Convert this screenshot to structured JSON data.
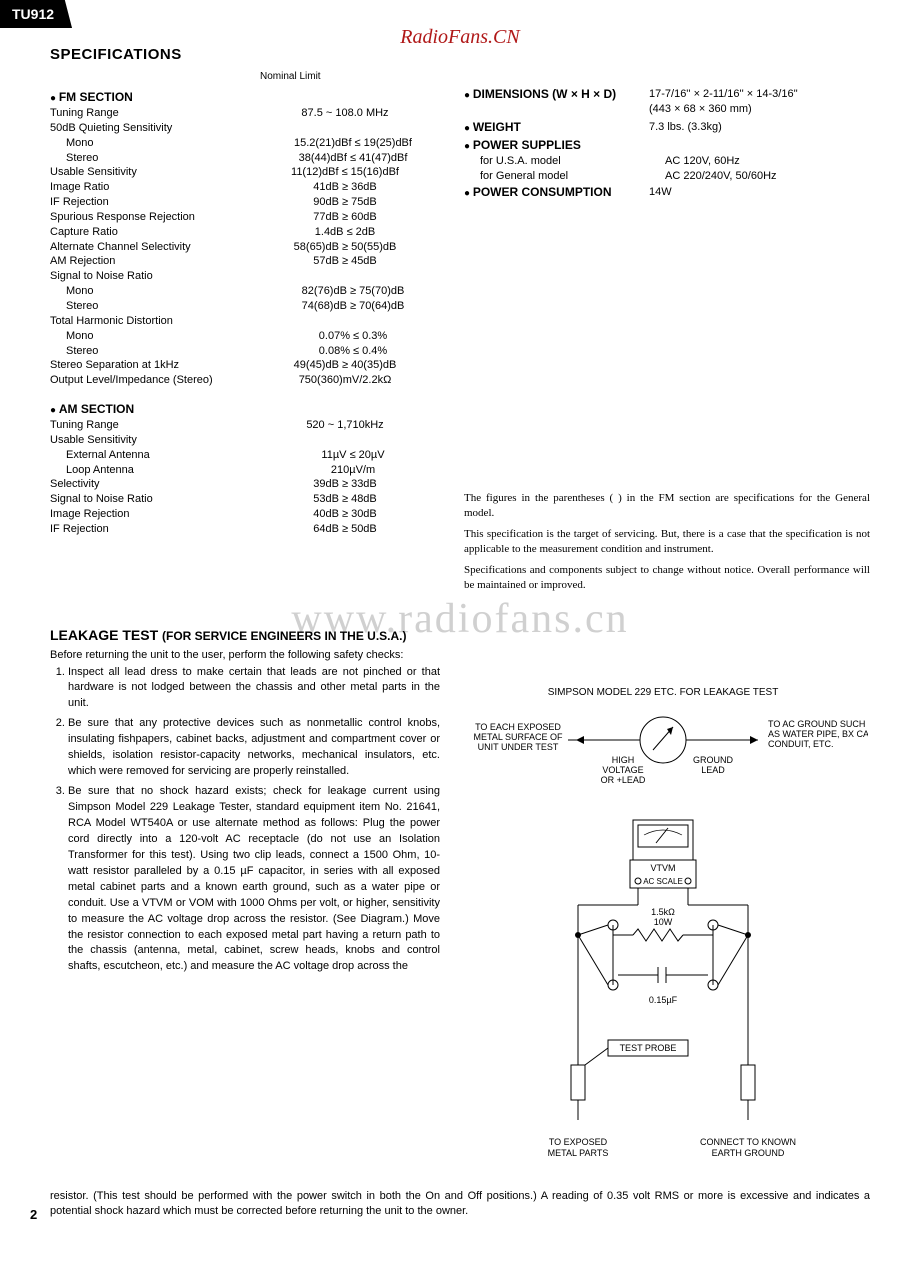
{
  "badge": "TU912",
  "brand": "RadioFans.CN",
  "watermark": "www.radiofans.cn",
  "page_num": "2",
  "title": "SPECIFICATIONS",
  "nl_header": "Nominal    Limit",
  "fm": {
    "head": "FM SECTION",
    "rows": [
      {
        "l": "Tuning Range",
        "v": "87.5 ~ 108.0 MHz"
      },
      {
        "l": "50dB Quieting Sensitivity",
        "v": ""
      },
      {
        "l": "Mono",
        "v": "15.2(21)dBf ≤ 19(25)dBf",
        "indent": true
      },
      {
        "l": "Stereo",
        "v": "38(44)dBf ≤ 41(47)dBf",
        "indent": true
      },
      {
        "l": "Usable Sensitivity",
        "v": "11(12)dBf ≤ 15(16)dBf"
      },
      {
        "l": "Image Ratio",
        "v": "41dB ≥ 36dB"
      },
      {
        "l": "IF Rejection",
        "v": "90dB ≥ 75dB"
      },
      {
        "l": "Spurious Response Rejection",
        "v": "77dB ≥ 60dB"
      },
      {
        "l": "Capture Ratio",
        "v": "1.4dB ≤ 2dB"
      },
      {
        "l": "Alternate Channel Selectivity",
        "v": "58(65)dB ≥ 50(55)dB"
      },
      {
        "l": "AM Rejection",
        "v": "57dB ≥ 45dB"
      },
      {
        "l": "Signal to Noise Ratio",
        "v": ""
      },
      {
        "l": "Mono",
        "v": "82(76)dB ≥ 75(70)dB",
        "indent": true
      },
      {
        "l": "Stereo",
        "v": "74(68)dB ≥ 70(64)dB",
        "indent": true
      },
      {
        "l": "Total Harmonic Distortion",
        "v": ""
      },
      {
        "l": "Mono",
        "v": "0.07% ≤ 0.3%",
        "indent": true
      },
      {
        "l": "Stereo",
        "v": "0.08% ≤ 0.4%",
        "indent": true
      },
      {
        "l": "Stereo Separation at 1kHz",
        "v": "49(45)dB ≥ 40(35)dB"
      },
      {
        "l": "Output Level/Impedance (Stereo)",
        "v": "750(360)mV/2.2kΩ"
      }
    ]
  },
  "am": {
    "head": "AM SECTION",
    "rows": [
      {
        "l": "Tuning Range",
        "v": "520 ~ 1,710kHz"
      },
      {
        "l": "Usable Sensitivity",
        "v": ""
      },
      {
        "l": "External Antenna",
        "v": "11µV ≤ 20µV",
        "indent": true
      },
      {
        "l": "Loop Antenna",
        "v": "210µV/m",
        "indent": true
      },
      {
        "l": "Selectivity",
        "v": "39dB ≥ 33dB"
      },
      {
        "l": "Signal to Noise Ratio",
        "v": "53dB ≥ 48dB"
      },
      {
        "l": "Image Rejection",
        "v": "40dB ≥ 30dB"
      },
      {
        "l": "IF Rejection",
        "v": "64dB ≥ 50dB"
      }
    ]
  },
  "right": [
    {
      "h": "DIMENSIONS (W × H × D)",
      "rows": [
        {
          "l": "",
          "v": "17-7/16'' × 2-11/16'' × 14-3/16''"
        },
        {
          "l": "",
          "v": "(443 × 68 × 360 mm)"
        }
      ]
    },
    {
      "h": "WEIGHT",
      "rows": [
        {
          "l": "",
          "v": "7.3 lbs. (3.3kg)"
        }
      ]
    },
    {
      "h": "POWER SUPPLIES",
      "rows": [
        {
          "l": "for U.S.A. model",
          "v": "AC 120V, 60Hz",
          "indent": true
        },
        {
          "l": "for General model",
          "v": "AC 220/240V, 50/60Hz",
          "indent": true
        }
      ]
    },
    {
      "h": "POWER CONSUMPTION",
      "rows": [
        {
          "l": "",
          "v": "14W"
        }
      ]
    }
  ],
  "notes": [
    "The figures in the parentheses ( ) in the FM section are specifications for the General model.",
    "This specification is the target of servicing. But, there is a case that the specification is not applicable to the measurement condition and instrument.",
    "Specifications and components subject to change without notice. Overall performance will be maintained or improved."
  ],
  "leakage": {
    "title": "LEAKAGE TEST",
    "sub": "(FOR SERVICE ENGINEERS IN THE U.S.A.)",
    "intro": "Before returning the unit to the user, perform the following safety checks:",
    "items": [
      "Inspect all lead dress to make certain that leads are not pinched or that hardware is not lodged between the chassis and other metal parts in the unit.",
      "Be sure that any protective devices such as nonmetallic control knobs, insulating fishpapers, cabinet backs, adjustment and compartment cover or shields, isolation resistor-capacity networks, mechanical insulators, etc. which were removed for servicing are properly reinstalled.",
      "Be sure that no shock hazard exists; check for leakage current using Simpson Model 229 Leakage Tester, standard equipment item No. 21641, RCA Model WT540A or use alternate method as follows: Plug the power cord directly into a 120-volt AC receptacle (do not use an Isolation Transformer for this test). Using two clip leads, connect a 1500 Ohm, 10-watt resistor paralleled by a 0.15 µF capacitor, in series with all exposed metal cabinet parts and a known earth ground, such as a water pipe or conduit. Use a VTVM or VOM with 1000 Ohms per volt, or higher, sensitivity to measure the AC voltage drop across the resistor. (See Diagram.) Move the resistor connection to each exposed metal part having a return path to the chassis (antenna, metal, cabinet, screw heads, knobs and control shafts, escutcheon, etc.) and measure the AC voltage drop across the"
    ],
    "tail": "resistor. (This test should be performed with the power switch in both the On and Off positions.) A reading of 0.35 volt RMS or more is excessive and indicates a potential shock hazard which must be corrected before returning the unit to the owner.",
    "diagram": {
      "top_label": "SIMPSON MODEL 229 ETC. FOR LEAKAGE TEST",
      "left_label": "TO EACH EXPOSED METAL SURFACE OF UNIT UNDER TEST",
      "hv_label": "HIGH VOLTAGE OR +LEAD",
      "gnd_label": "GROUND LEAD",
      "right_label": "TO AC GROUND SUCH AS WATER PIPE, BX CABLE, CONDUIT, ETC.",
      "vtvm": "VTVM",
      "acscale": "AC SCALE",
      "res": "1.5kΩ\n10W",
      "cap": "0.15µF",
      "probe": "TEST PROBE",
      "bl": "TO EXPOSED METAL PARTS",
      "br": "CONNECT TO KNOWN EARTH GROUND"
    }
  }
}
